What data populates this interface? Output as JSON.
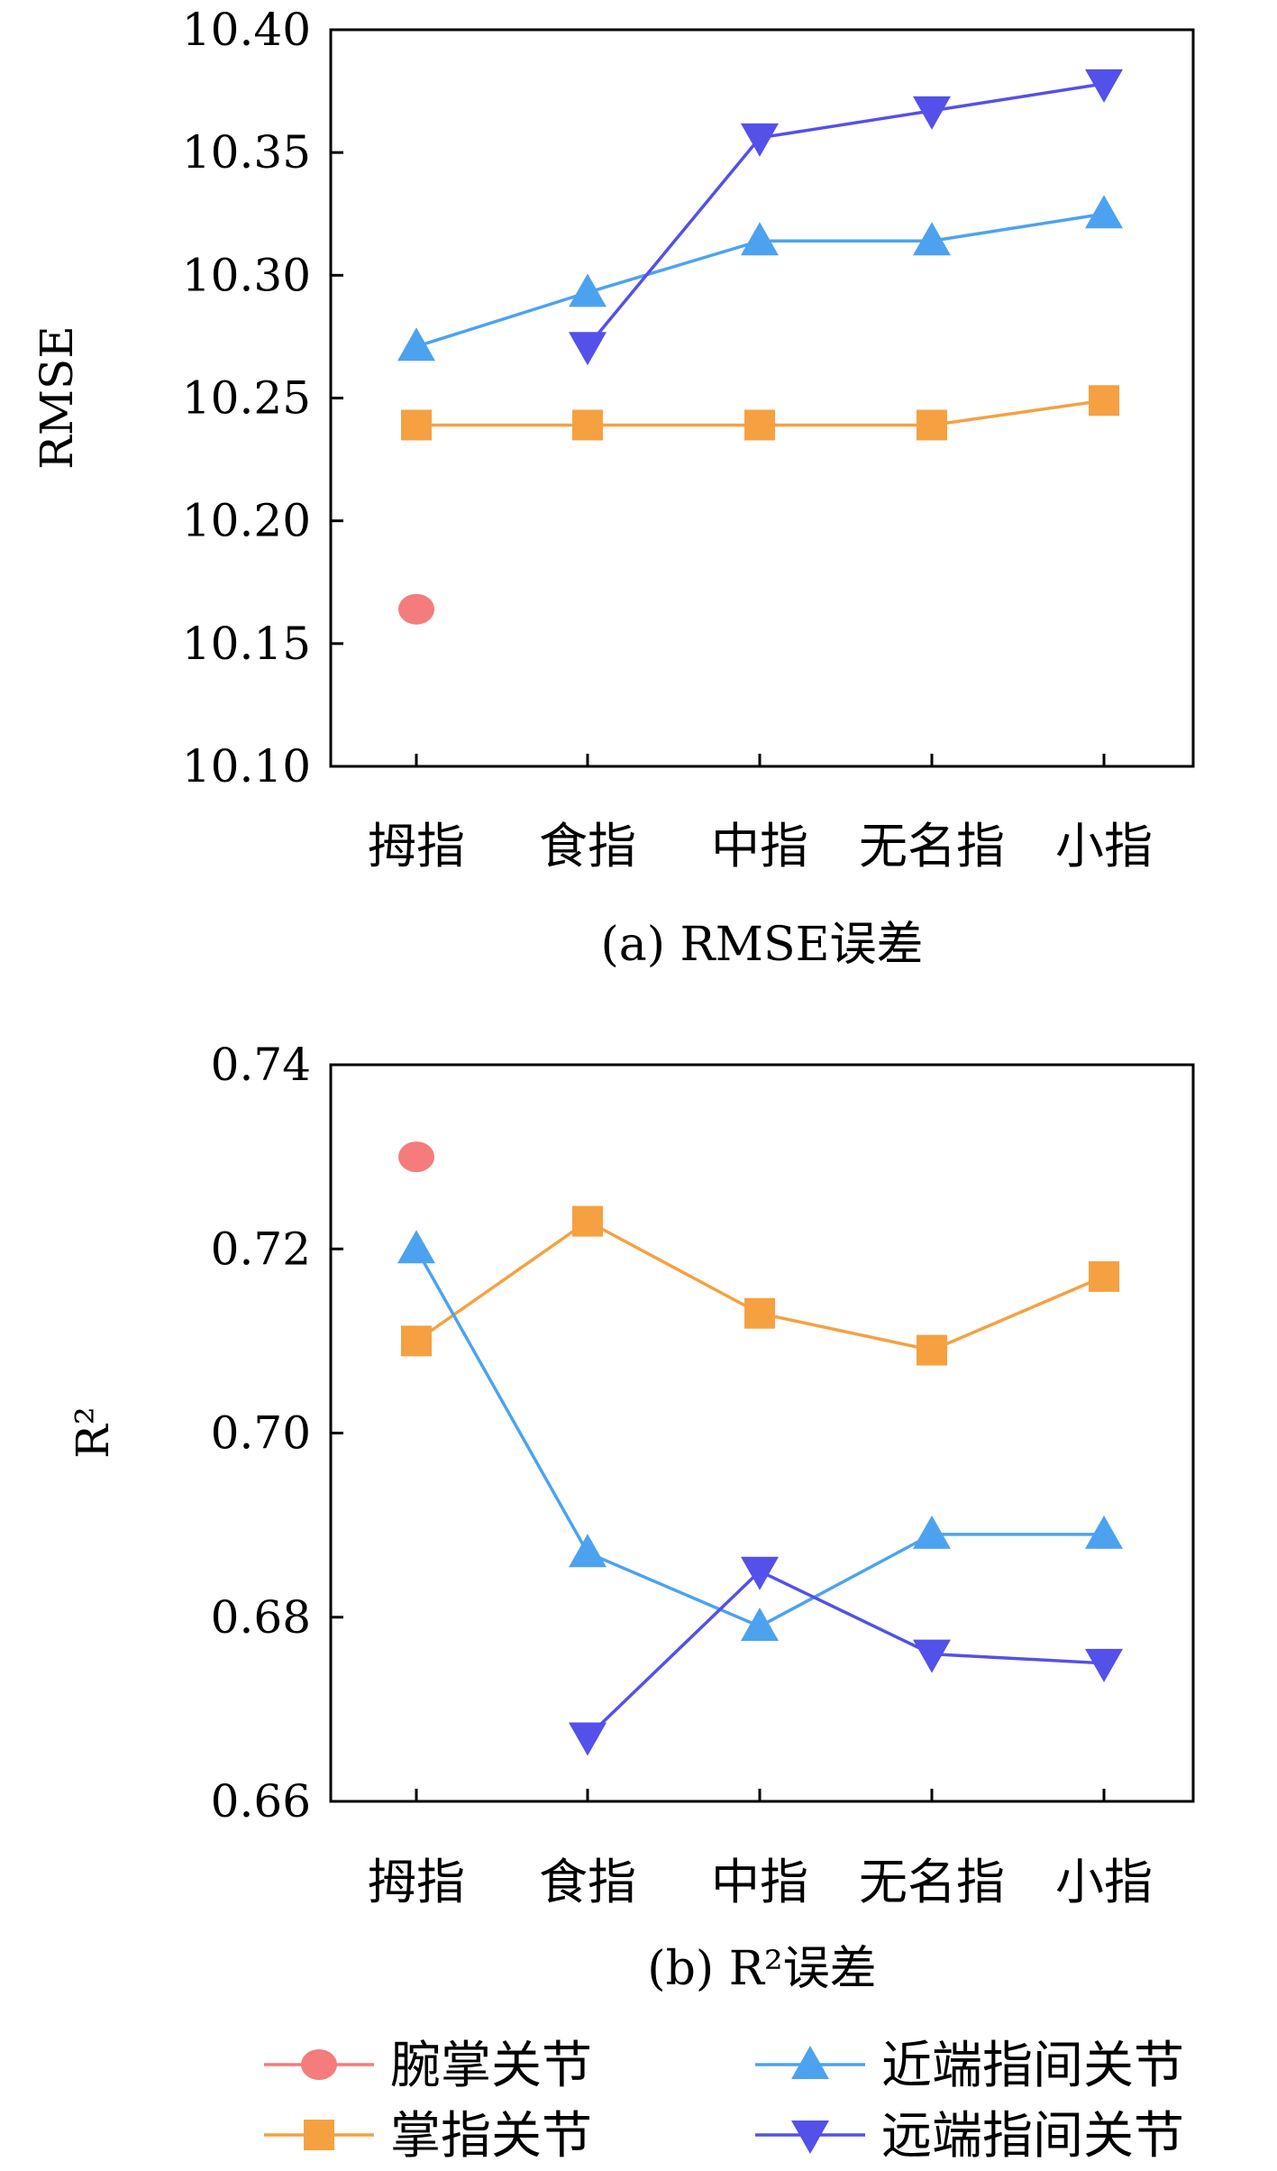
{
  "categories": [
    "拇指",
    "食指",
    "中指",
    "无名指",
    "小指"
  ],
  "legend": [
    {
      "name": "腕掌关节",
      "color": "#f47c7c",
      "marker": "circle"
    },
    {
      "name": "掌指关节",
      "color": "#f5a142",
      "marker": "square"
    },
    {
      "name": "近端指间关节",
      "color": "#4da2f0",
      "marker": "triangle-up"
    },
    {
      "name": "远端指间关节",
      "color": "#5450ea",
      "marker": "triangle-down"
    }
  ],
  "chart_data": [
    {
      "type": "line",
      "caption": "(a) RMSE误差",
      "ylabel": "RMSE",
      "ylim": [
        10.1,
        10.4
      ],
      "yticks": [
        "10.10",
        "10.15",
        "10.20",
        "10.25",
        "10.30",
        "10.35",
        "10.40"
      ],
      "categories": [
        "拇指",
        "食指",
        "中指",
        "无名指",
        "小指"
      ],
      "series": [
        {
          "name": "腕掌关节",
          "values": [
            10.164,
            null,
            null,
            null,
            null
          ]
        },
        {
          "name": "掌指关节",
          "values": [
            10.239,
            10.239,
            10.239,
            10.239,
            10.249
          ]
        },
        {
          "name": "近端指间关节",
          "values": [
            10.271,
            10.293,
            10.314,
            10.314,
            10.325
          ]
        },
        {
          "name": "远端指间关节",
          "values": [
            null,
            10.271,
            10.356,
            10.367,
            10.378
          ]
        }
      ]
    },
    {
      "type": "line",
      "caption": "(b) R²误差",
      "ylabel": "R²",
      "ylim": [
        0.66,
        0.74
      ],
      "yticks": [
        "0.66",
        "0.68",
        "0.70",
        "0.72",
        "0.74"
      ],
      "categories": [
        "拇指",
        "食指",
        "中指",
        "无名指",
        "小指"
      ],
      "series": [
        {
          "name": "腕掌关节",
          "values": [
            0.73,
            null,
            null,
            null,
            null
          ]
        },
        {
          "name": "掌指关节",
          "values": [
            0.71,
            0.723,
            0.713,
            0.709,
            0.717
          ]
        },
        {
          "name": "近端指间关节",
          "values": [
            0.72,
            0.687,
            0.679,
            0.689,
            0.689
          ]
        },
        {
          "name": "远端指间关节",
          "values": [
            null,
            0.667,
            0.685,
            0.676,
            0.675
          ]
        }
      ]
    }
  ]
}
